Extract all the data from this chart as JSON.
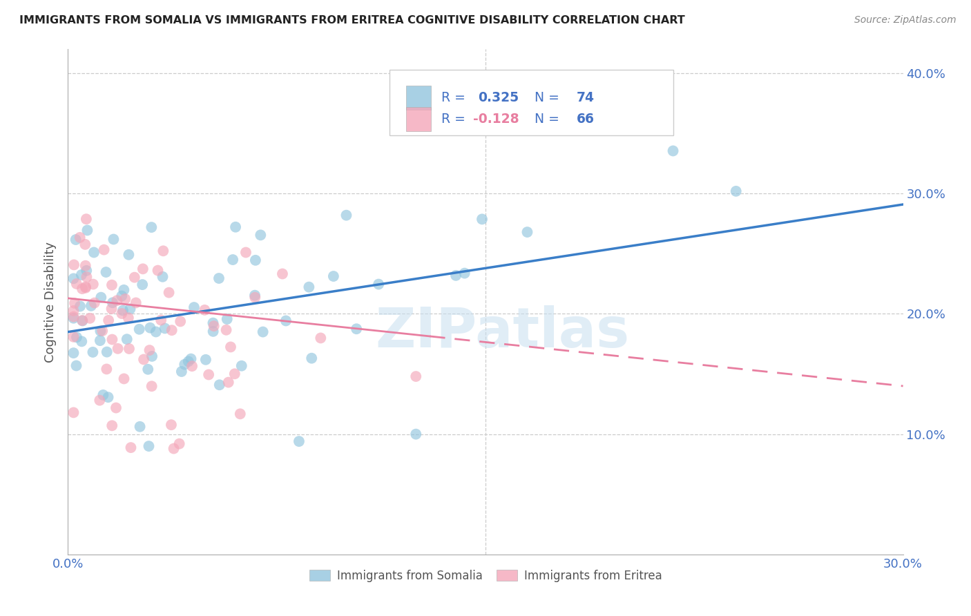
{
  "title": "IMMIGRANTS FROM SOMALIA VS IMMIGRANTS FROM ERITREA COGNITIVE DISABILITY CORRELATION CHART",
  "source": "Source: ZipAtlas.com",
  "ylabel": "Cognitive Disability",
  "somalia_color": "#92c5de",
  "eritrea_color": "#f4a7b9",
  "somalia_R": 0.325,
  "somalia_N": 74,
  "eritrea_R": -0.128,
  "eritrea_N": 66,
  "somalia_line_color": "#3a7ec8",
  "eritrea_line_color": "#e87ea0",
  "legend_text_color": "#4472c4",
  "axis_tick_color": "#4472c4",
  "watermark_color": "#c8dff0",
  "legend_somalia_label": "Immigrants from Somalia",
  "legend_eritrea_label": "Immigrants from Eritrea",
  "xlim": [
    0.0,
    0.3
  ],
  "ylim": [
    0.0,
    0.42
  ],
  "somalia_line_x0": 0.0,
  "somalia_line_y0": 0.185,
  "somalia_line_x1": 0.3,
  "somalia_line_y1": 0.291,
  "eritrea_line_x0": 0.0,
  "eritrea_line_y0": 0.213,
  "eritrea_line_x1": 0.3,
  "eritrea_line_y1": 0.14
}
